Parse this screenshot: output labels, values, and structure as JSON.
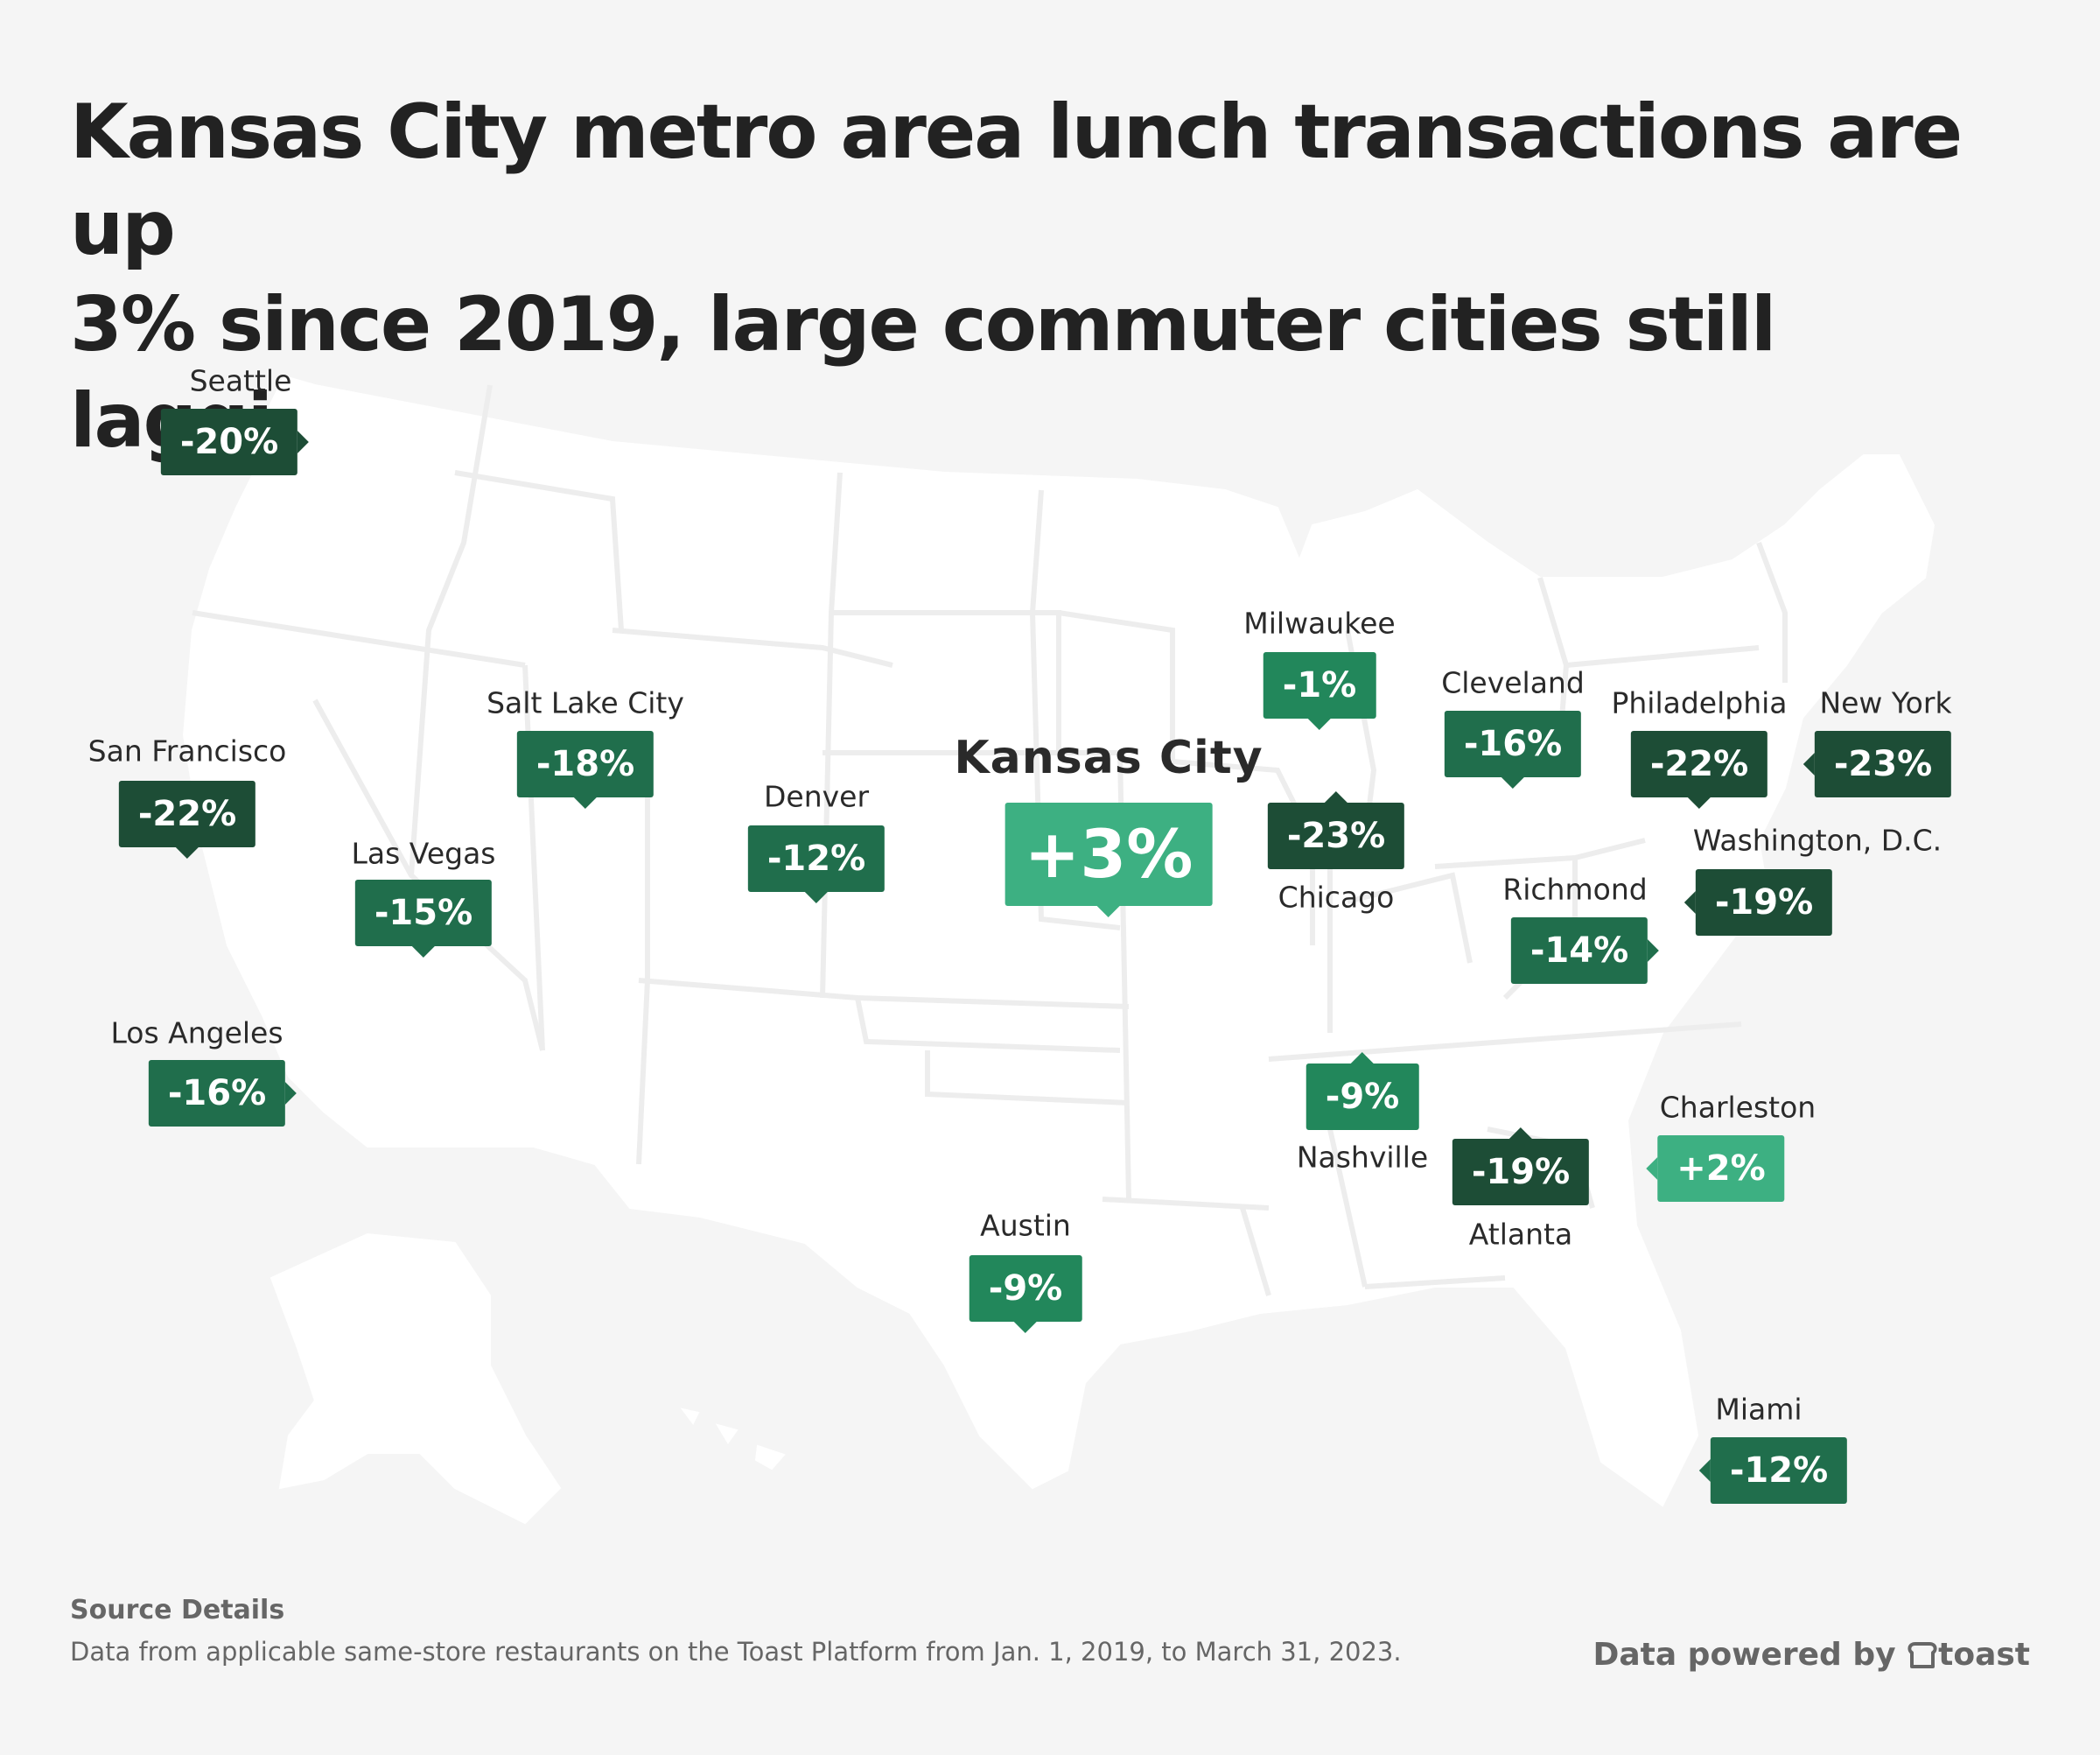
{
  "title": {
    "line1": "Kansas City metro area lunch transactions are up",
    "line2": "3% since 2019, large commuter cities still lagging"
  },
  "colors": {
    "background": "#f5f5f5",
    "land": "#ffffff",
    "borders": "#ededed",
    "dark_green": "#1d4d36",
    "mid_green": "#206e4c",
    "green": "#22875b",
    "light_green": "#3db082"
  },
  "chart_data": {
    "type": "map",
    "measure": "change in lunch transactions since 2019",
    "cities": [
      {
        "id": "seattle",
        "name": "Seattle",
        "value": "-20%",
        "shade": "dark_green",
        "tail": "right"
      },
      {
        "id": "san-francisco",
        "name": "San Francisco",
        "value": "-22%",
        "shade": "dark_green",
        "tail": "down"
      },
      {
        "id": "los-angeles",
        "name": "Los Angeles",
        "value": "-16%",
        "shade": "mid_green",
        "tail": "right"
      },
      {
        "id": "las-vegas",
        "name": "Las Vegas",
        "value": "-15%",
        "shade": "mid_green",
        "tail": "down"
      },
      {
        "id": "salt-lake-city",
        "name": "Salt Lake City",
        "value": "-18%",
        "shade": "mid_green",
        "tail": "down"
      },
      {
        "id": "denver",
        "name": "Denver",
        "value": "-12%",
        "shade": "mid_green",
        "tail": "down"
      },
      {
        "id": "kansas-city",
        "name": "Kansas City",
        "value": "+3%",
        "shade": "light_green",
        "tail": "down",
        "highlight": true
      },
      {
        "id": "austin",
        "name": "Austin",
        "value": "-9%",
        "shade": "green",
        "tail": "down"
      },
      {
        "id": "milwaukee",
        "name": "Milwaukee",
        "value": "-1%",
        "shade": "green",
        "tail": "down"
      },
      {
        "id": "chicago",
        "name": "Chicago",
        "value": "-23%",
        "shade": "dark_green",
        "tail": "up"
      },
      {
        "id": "nashville",
        "name": "Nashville",
        "value": "-9%",
        "shade": "green",
        "tail": "up"
      },
      {
        "id": "atlanta",
        "name": "Atlanta",
        "value": "-19%",
        "shade": "dark_green",
        "tail": "up"
      },
      {
        "id": "cleveland",
        "name": "Cleveland",
        "value": "-16%",
        "shade": "mid_green",
        "tail": "down"
      },
      {
        "id": "richmond",
        "name": "Richmond",
        "value": "-14%",
        "shade": "mid_green",
        "tail": "right"
      },
      {
        "id": "philadelphia",
        "name": "Philadelphia",
        "value": "-22%",
        "shade": "dark_green",
        "tail": "down"
      },
      {
        "id": "new-york",
        "name": "New York",
        "value": "-23%",
        "shade": "dark_green",
        "tail": "left"
      },
      {
        "id": "washington-dc",
        "name": "Washington, D.C.",
        "value": "-19%",
        "shade": "dark_green",
        "tail": "left"
      },
      {
        "id": "charleston",
        "name": "Charleston",
        "value": "+2%",
        "shade": "light_green",
        "tail": "left"
      },
      {
        "id": "miami",
        "name": "Miami",
        "value": "-12%",
        "shade": "mid_green",
        "tail": "left"
      }
    ]
  },
  "source": {
    "heading": "Source Details",
    "text": "Data from applicable same-store restaurants on the Toast Platform from Jan. 1, 2019, to March 31, 2023."
  },
  "brand": {
    "prefix": "Data powered by",
    "name": "toast",
    "icon": "toast-logo-icon"
  }
}
